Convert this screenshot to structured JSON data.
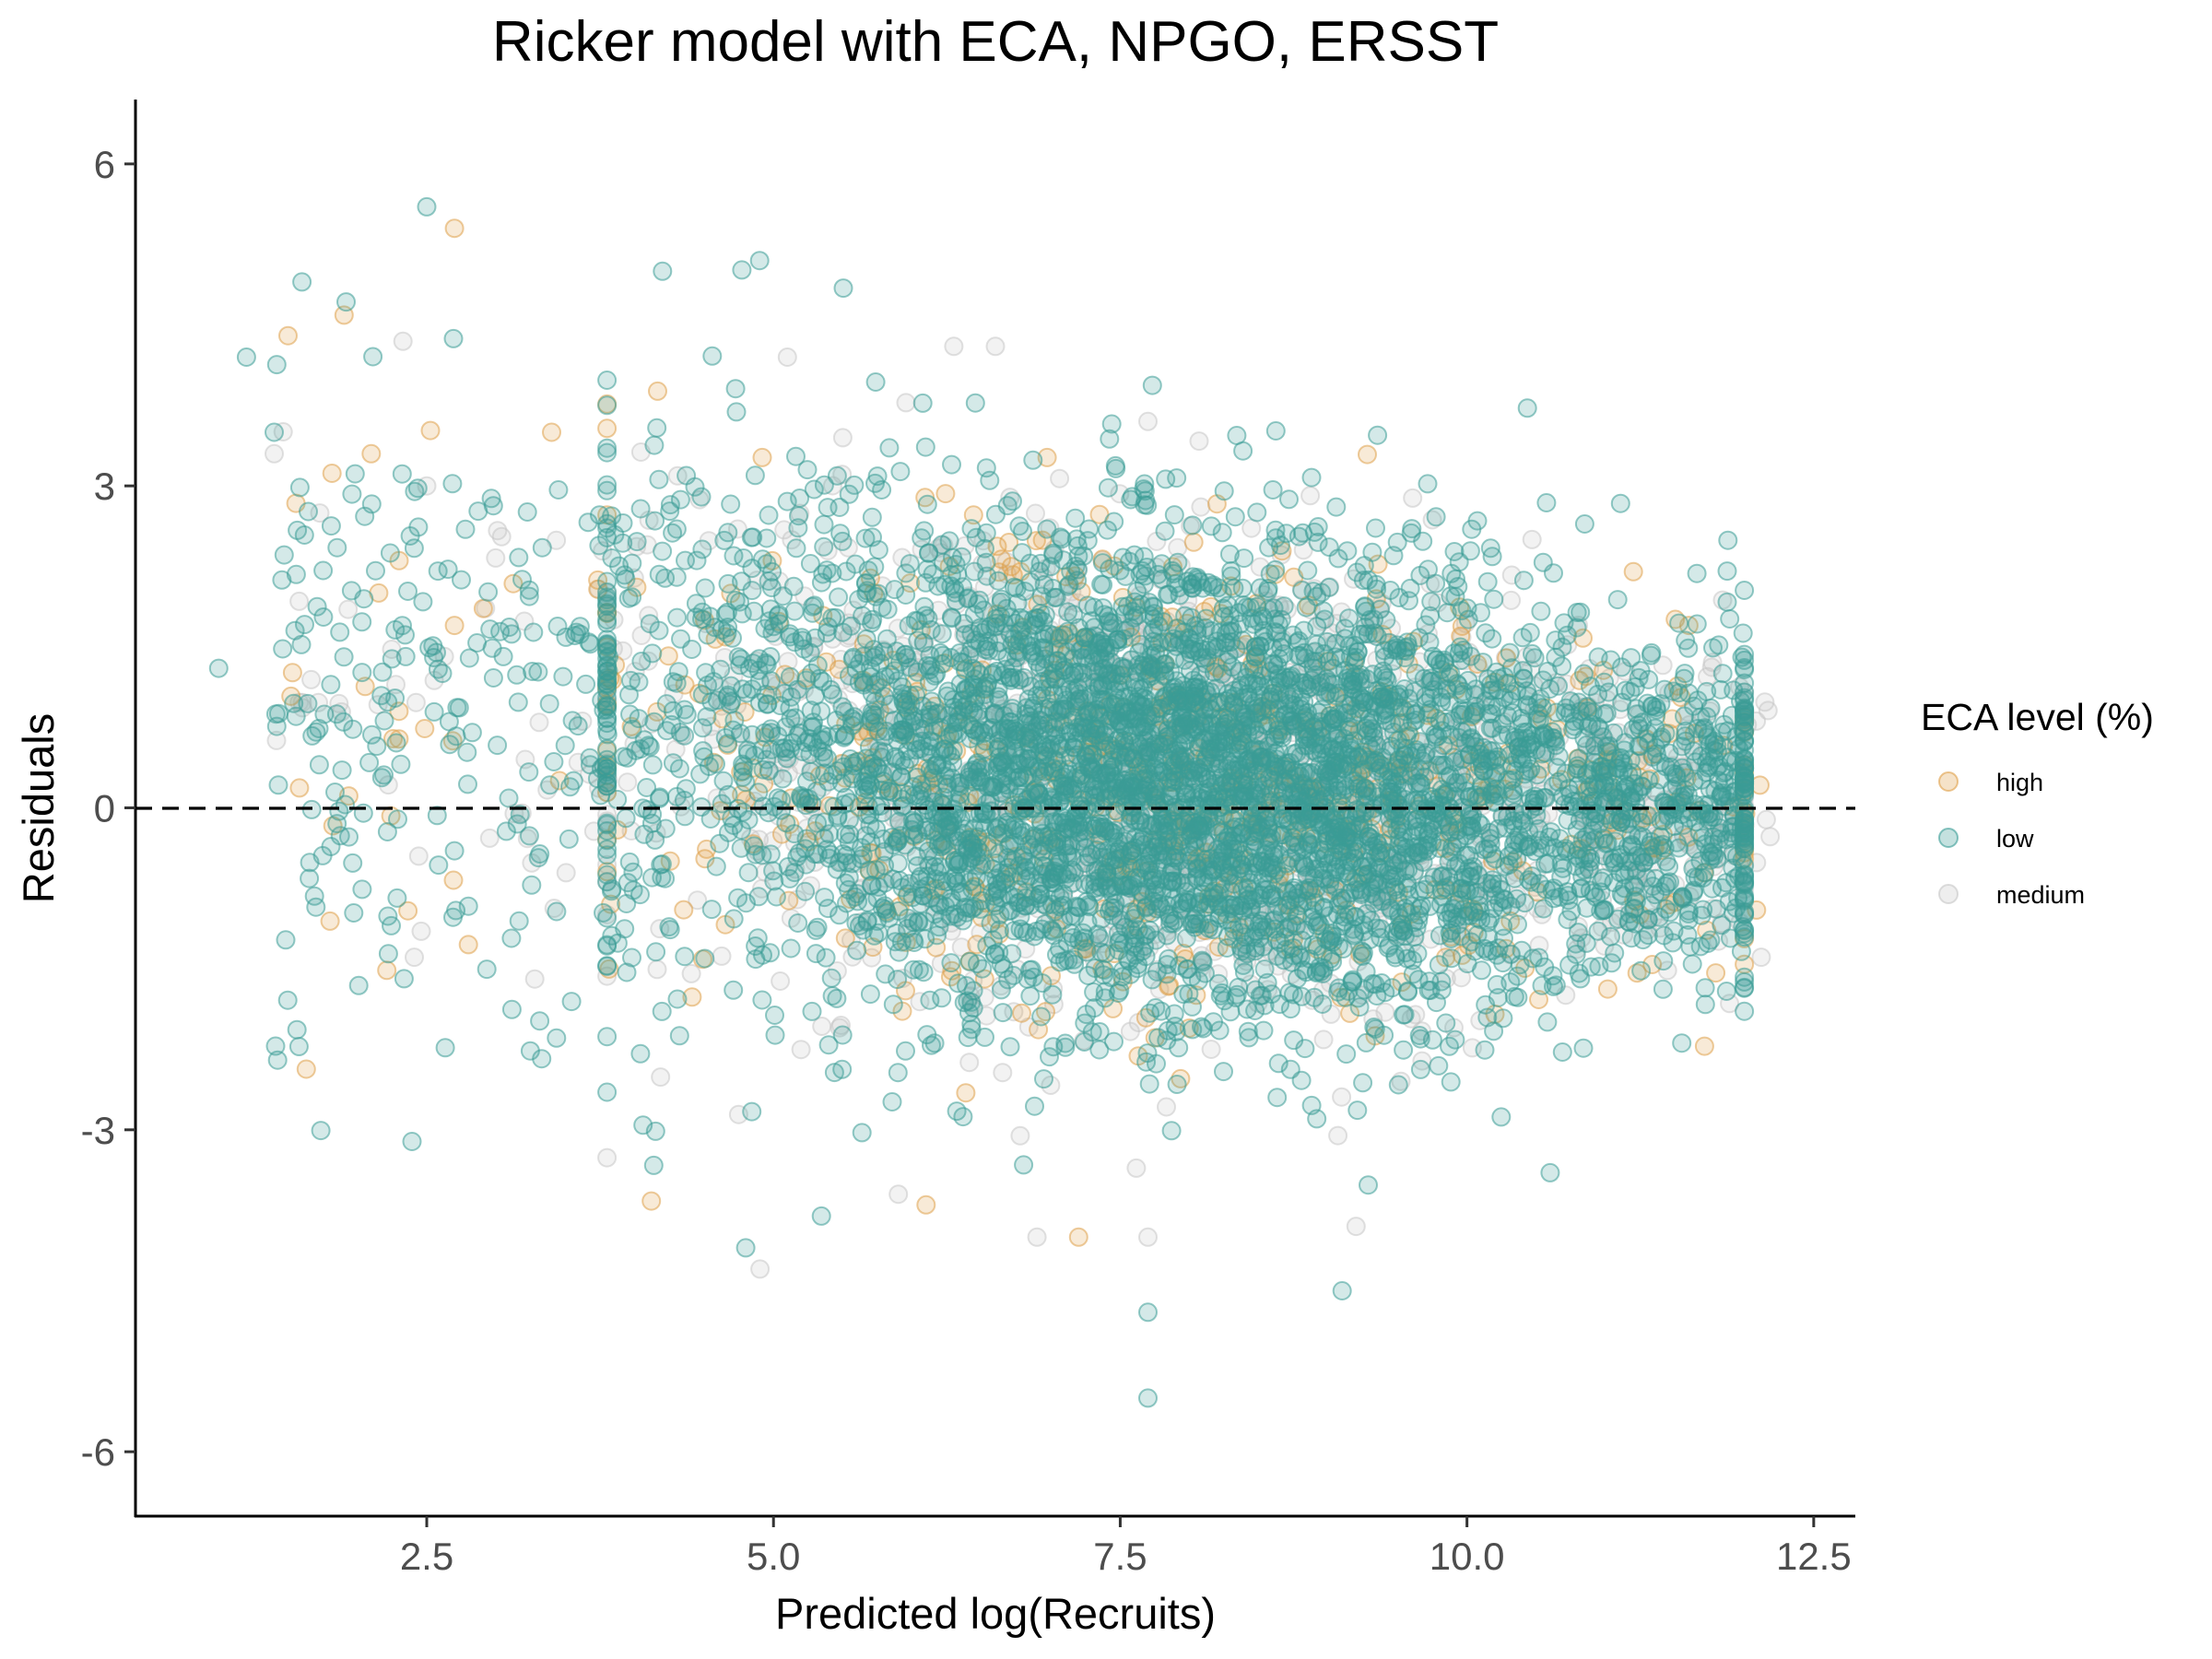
{
  "chart_data": {
    "type": "scatter",
    "title": "Ricker model with ECA, NPGO, ERSST",
    "xlabel": "Predicted log(Recruits)",
    "ylabel": "Residuals",
    "xlim": [
      0.4,
      12.8
    ],
    "ylim": [
      -6.6,
      6.6
    ],
    "x_ticks": [
      "2.5",
      "5.0",
      "7.5",
      "10.0",
      "12.5"
    ],
    "x_tick_values": [
      2.5,
      5.0,
      7.5,
      10.0,
      12.5
    ],
    "y_ticks": [
      "6",
      "3",
      "0",
      "-3",
      "-6"
    ],
    "y_tick_values": [
      6,
      3,
      0,
      -3,
      -6
    ],
    "grid": false,
    "reference_line": {
      "y": 0,
      "style": "dashed",
      "color": "#000000"
    },
    "point_alpha": 0.22,
    "legend": {
      "title": "ECA level (%)",
      "position": "right",
      "entries": [
        {
          "name": "high",
          "color": "#dfa04a"
        },
        {
          "name": "low",
          "color": "#3a9c96"
        },
        {
          "name": "medium",
          "color": "#c6c6c6"
        }
      ]
    },
    "series": [
      {
        "name": "low",
        "color": "#3a9c96",
        "n_points": 5200,
        "x_range": [
          1.0,
          12.0
        ],
        "outliers": [
          [
            2.5,
            5.6
          ],
          [
            1.6,
            4.9
          ],
          [
            1.2,
            4.2
          ],
          [
            1.4,
            3.5
          ],
          [
            1.0,
            1.3
          ],
          [
            1.9,
            0.8
          ],
          [
            4.9,
            5.1
          ],
          [
            4.2,
            5.0
          ],
          [
            7.7,
            -5.5
          ],
          [
            7.7,
            -4.7
          ],
          [
            9.1,
            -4.5
          ],
          [
            4.8,
            -4.1
          ],
          [
            10.6,
            -3.4
          ],
          [
            2.7,
            -0.4
          ]
        ]
      },
      {
        "name": "high",
        "color": "#dfa04a",
        "n_points": 650,
        "x_range": [
          1.5,
          12.2
        ],
        "outliers": [
          [
            2.7,
            5.4
          ],
          [
            1.5,
            4.4
          ],
          [
            2.1,
            3.3
          ],
          [
            3.4,
            3.5
          ],
          [
            2.3,
            0.9
          ],
          [
            2.7,
            1.7
          ],
          [
            11.2,
            2.2
          ],
          [
            11.6,
            1.7
          ],
          [
            6.1,
            -3.7
          ],
          [
            7.2,
            -4.0
          ]
        ]
      },
      {
        "name": "medium",
        "color": "#c6c6c6",
        "n_points": 1300,
        "x_range": [
          1.4,
          12.2
        ],
        "outliers": [
          [
            1.4,
            3.3
          ],
          [
            2.5,
            3.0
          ],
          [
            5.1,
            4.2
          ],
          [
            6.3,
            4.3
          ],
          [
            6.6,
            4.3
          ],
          [
            7.7,
            3.6
          ],
          [
            5.9,
            -3.6
          ],
          [
            6.9,
            -4.0
          ],
          [
            7.7,
            -4.0
          ],
          [
            9.2,
            -3.9
          ]
        ]
      }
    ]
  }
}
